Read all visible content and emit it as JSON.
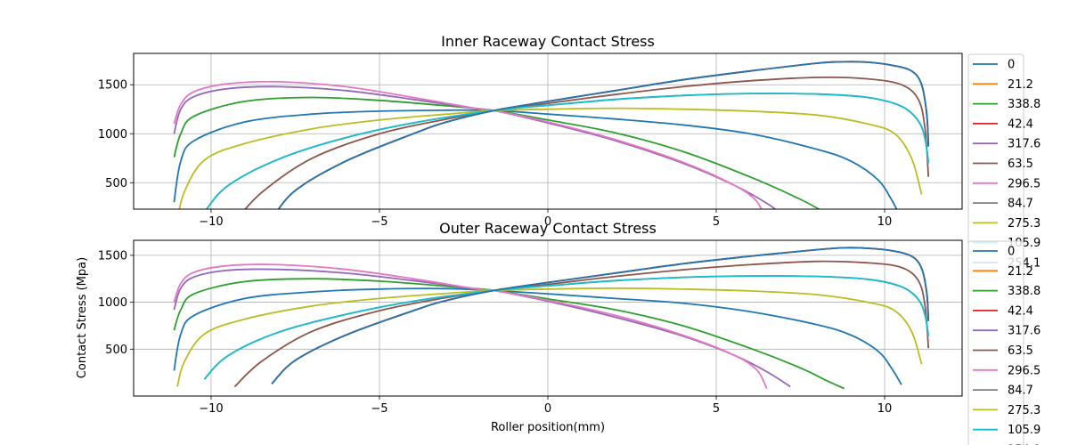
{
  "colors": {
    "palette": [
      "#1f77b4",
      "#ff7f0e",
      "#2ca02c",
      "#d62728",
      "#9467bd",
      "#8c564b",
      "#e377c2",
      "#7f7f7f",
      "#bcbd22",
      "#17becf"
    ],
    "grid": "#b0b0b0",
    "axes": "#000000"
  },
  "chart_data": [
    {
      "type": "line",
      "title": "Inner Raceway Contact Stress",
      "xlabel": "",
      "ylabel": "",
      "xlim": [
        -12.3,
        12.3
      ],
      "ylim": [
        230,
        1820
      ],
      "xticks": [
        -10,
        -5,
        0,
        5,
        10
      ],
      "xtick_labels": [
        "−10",
        "−5",
        "0",
        "5",
        "10"
      ],
      "yticks": [
        500,
        1000,
        1500
      ],
      "ytick_labels": [
        "500",
        "1000",
        "1500"
      ],
      "grid": true,
      "legend": {
        "placement": "right, outside",
        "labels": [
          "0",
          "21.2",
          "338.8",
          "42.4",
          "317.6",
          "63.5",
          "296.5",
          "84.7",
          "275.3",
          "105.9",
          "254.1"
        ]
      },
      "series": [
        {
          "name": "0",
          "color_index": 0,
          "x": [
            -11.1,
            -10.9,
            -10.5,
            -9,
            -7,
            -5,
            -3,
            -1.6,
            0,
            2,
            4,
            6,
            8,
            9,
            9.8,
            10.2,
            10.5
          ],
          "y": [
            300,
            720,
            930,
            1120,
            1200,
            1230,
            1240,
            1237,
            1200,
            1150,
            1090,
            1000,
            840,
            720,
            530,
            330,
            130
          ]
        },
        {
          "name": "21.2",
          "color_index": 1,
          "x": [
            -8.2,
            -7.5,
            -6,
            -4,
            -3,
            -1.6,
            0,
            2,
            4,
            6,
            8,
            8.8,
            9.5,
            10.2,
            10.8,
            11.1,
            11.25,
            11.3
          ],
          "y": [
            130,
            420,
            720,
            1000,
            1120,
            1237,
            1330,
            1440,
            1550,
            1640,
            1720,
            1735,
            1730,
            1700,
            1640,
            1500,
            1200,
            870
          ]
        },
        {
          "name": "338.8",
          "color_index": 2,
          "x": [
            -11.1,
            -10.9,
            -10.5,
            -9,
            -7,
            -5,
            -3,
            -1.6,
            0,
            2,
            4,
            6,
            7.5,
            8.3,
            8.8
          ],
          "y": [
            760,
            1000,
            1180,
            1330,
            1370,
            1340,
            1285,
            1237,
            1140,
            1010,
            820,
            560,
            330,
            180,
            80
          ]
        },
        {
          "name": "42.4",
          "color_index": 3,
          "x": [
            -8.2,
            -7.5,
            -6,
            -4,
            -3,
            -1.6,
            0,
            2,
            4,
            6,
            8,
            8.8,
            9.5,
            10.2,
            10.8,
            11.1,
            11.25,
            11.3
          ],
          "y": [
            130,
            420,
            720,
            1000,
            1120,
            1237,
            1330,
            1440,
            1550,
            1640,
            1720,
            1735,
            1730,
            1700,
            1640,
            1500,
            1200,
            870
          ]
        },
        {
          "name": "317.6",
          "color_index": 4,
          "x": [
            -11.1,
            -10.9,
            -10.5,
            -9.5,
            -8,
            -6,
            -4,
            -2,
            -1.6,
            0,
            2,
            4,
            5.5,
            6.5,
            7.2
          ],
          "y": [
            1000,
            1250,
            1380,
            1460,
            1480,
            1440,
            1350,
            1250,
            1237,
            1110,
            930,
            700,
            480,
            290,
            110
          ]
        },
        {
          "name": "63.5",
          "color_index": 5,
          "x": [
            -9.3,
            -8.5,
            -7,
            -5,
            -3,
            -1.6,
            0,
            2,
            4,
            6,
            8,
            9.5,
            10.5,
            11,
            11.2,
            11.3
          ],
          "y": [
            100,
            400,
            750,
            1000,
            1150,
            1237,
            1310,
            1400,
            1480,
            1540,
            1575,
            1560,
            1500,
            1350,
            1050,
            560
          ]
        },
        {
          "name": "296.5",
          "color_index": 6,
          "x": [
            -11.1,
            -10.9,
            -10.5,
            -9.5,
            -8,
            -6,
            -4,
            -2,
            -1.6,
            0,
            2,
            4,
            5.5,
            6.2,
            6.5
          ],
          "y": [
            1100,
            1300,
            1430,
            1510,
            1530,
            1480,
            1370,
            1250,
            1237,
            1120,
            940,
            710,
            480,
            310,
            80
          ]
        },
        {
          "name": "84.7",
          "color_index": 7,
          "x": [
            -10.2,
            -9.5,
            -8,
            -6,
            -4,
            -1.6,
            0,
            2,
            4,
            6,
            8,
            9.5,
            10.5,
            11,
            11.2,
            11.3
          ],
          "y": [
            200,
            470,
            740,
            960,
            1110,
            1237,
            1290,
            1350,
            1390,
            1410,
            1405,
            1370,
            1280,
            1130,
            950,
            700
          ]
        },
        {
          "name": "275.3",
          "color_index": 8,
          "x": [
            -11,
            -10.8,
            -10.2,
            -9,
            -7,
            -5,
            -3,
            -1.6,
            0,
            2,
            4,
            6,
            8,
            9.5,
            10.3,
            10.8,
            11.1
          ],
          "y": [
            120,
            400,
            730,
            900,
            1050,
            1140,
            1200,
            1237,
            1250,
            1260,
            1250,
            1230,
            1190,
            1100,
            1000,
            750,
            380
          ]
        },
        {
          "name": "105.9",
          "color_index": 9,
          "x": [
            -10.2,
            -9.5,
            -8,
            -6,
            -4,
            -1.6,
            0,
            2,
            4,
            6,
            8,
            9.5,
            10.5,
            11,
            11.2,
            11.3
          ],
          "y": [
            200,
            470,
            740,
            960,
            1110,
            1237,
            1290,
            1350,
            1390,
            1410,
            1405,
            1370,
            1280,
            1130,
            950,
            700
          ]
        },
        {
          "name": "254.1",
          "color_index": 0,
          "x": [
            -8.2,
            -7.5,
            -6,
            -4,
            -3,
            -1.6,
            0,
            2,
            4,
            6,
            8,
            8.8,
            9.5,
            10.2,
            10.8,
            11.1,
            11.25,
            11.3
          ],
          "y": [
            130,
            420,
            720,
            1000,
            1120,
            1237,
            1330,
            1440,
            1550,
            1640,
            1720,
            1735,
            1730,
            1700,
            1640,
            1500,
            1200,
            870
          ]
        }
      ]
    },
    {
      "type": "line",
      "title": "Outer Raceway Contact Stress",
      "xlabel": "Roller position(mm)",
      "ylabel": "Contact Stress (Mpa)",
      "xlim": [
        -12.3,
        12.3
      ],
      "ylim": [
        0,
        1660
      ],
      "xticks": [
        -10,
        -5,
        0,
        5,
        10
      ],
      "xtick_labels": [
        "−10",
        "−5",
        "0",
        "5",
        "10"
      ],
      "yticks": [
        500,
        1000,
        1500
      ],
      "ytick_labels": [
        "500",
        "1000",
        "1500"
      ],
      "grid": true,
      "legend": {
        "placement": "right, outside",
        "labels": [
          "0",
          "21.2",
          "338.8",
          "42.4",
          "317.6",
          "63.5",
          "296.5",
          "84.7",
          "275.3",
          "105.9",
          "254.1"
        ]
      },
      "series": [
        {
          "name": "0",
          "color_index": 0,
          "x": [
            -11.1,
            -10.9,
            -10.5,
            -9,
            -7,
            -5,
            -3,
            -1.6,
            0,
            2,
            4,
            6,
            8,
            9,
            9.8,
            10.2,
            10.5
          ],
          "y": [
            270,
            660,
            860,
            1040,
            1110,
            1140,
            1145,
            1125,
            1090,
            1040,
            990,
            900,
            760,
            650,
            480,
            300,
            120
          ]
        },
        {
          "name": "21.2",
          "color_index": 1,
          "x": [
            -8.2,
            -7.5,
            -6,
            -4,
            -3,
            -1.6,
            0,
            2,
            4,
            6,
            8,
            8.8,
            9.5,
            10.2,
            10.8,
            11.1,
            11.25,
            11.3
          ],
          "y": [
            130,
            380,
            650,
            910,
            1020,
            1125,
            1210,
            1310,
            1410,
            1490,
            1560,
            1580,
            1575,
            1550,
            1490,
            1360,
            1100,
            800
          ]
        },
        {
          "name": "338.8",
          "color_index": 2,
          "x": [
            -11.1,
            -10.9,
            -10.5,
            -9,
            -7,
            -5,
            -3,
            -1.6,
            0,
            2,
            4,
            6,
            7.5,
            8.3,
            8.8
          ],
          "y": [
            700,
            920,
            1090,
            1220,
            1250,
            1225,
            1170,
            1125,
            1035,
            920,
            750,
            510,
            300,
            160,
            80
          ]
        },
        {
          "name": "42.4",
          "color_index": 3,
          "x": [
            -8.2,
            -7.5,
            -6,
            -4,
            -3,
            -1.6,
            0,
            2,
            4,
            6,
            8,
            8.8,
            9.5,
            10.2,
            10.8,
            11.1,
            11.25,
            11.3
          ],
          "y": [
            130,
            380,
            650,
            910,
            1020,
            1125,
            1210,
            1310,
            1410,
            1490,
            1560,
            1580,
            1575,
            1550,
            1490,
            1360,
            1100,
            800
          ]
        },
        {
          "name": "317.6",
          "color_index": 4,
          "x": [
            -11.1,
            -10.9,
            -10.5,
            -9.5,
            -8,
            -6,
            -4,
            -2,
            -1.6,
            0,
            2,
            4,
            5.5,
            6.5,
            7.2
          ],
          "y": [
            920,
            1150,
            1270,
            1340,
            1350,
            1310,
            1230,
            1135,
            1125,
            1010,
            840,
            640,
            440,
            260,
            100
          ]
        },
        {
          "name": "63.5",
          "color_index": 5,
          "x": [
            -9.3,
            -8.5,
            -7,
            -5,
            -3,
            -1.6,
            0,
            2,
            4,
            6,
            8,
            9.5,
            10.5,
            11,
            11.2,
            11.3
          ],
          "y": [
            100,
            370,
            690,
            910,
            1050,
            1125,
            1190,
            1275,
            1345,
            1400,
            1435,
            1420,
            1370,
            1230,
            960,
            510
          ]
        },
        {
          "name": "296.5",
          "color_index": 6,
          "x": [
            -11.1,
            -10.9,
            -10.5,
            -9.5,
            -8,
            -6,
            -4,
            -2,
            -1.6,
            0,
            2,
            4,
            5.5,
            6.2,
            6.5
          ],
          "y": [
            1000,
            1200,
            1320,
            1390,
            1400,
            1350,
            1250,
            1135,
            1125,
            1020,
            860,
            650,
            440,
            280,
            80
          ]
        },
        {
          "name": "84.7",
          "color_index": 7,
          "x": [
            -10.2,
            -9.5,
            -8,
            -6,
            -4,
            -1.6,
            0,
            2,
            4,
            6,
            8,
            9.5,
            10.5,
            11,
            11.2,
            11.3
          ],
          "y": [
            180,
            430,
            680,
            870,
            1010,
            1125,
            1175,
            1230,
            1265,
            1280,
            1275,
            1245,
            1165,
            1030,
            860,
            640
          ]
        },
        {
          "name": "275.3",
          "color_index": 8,
          "x": [
            -11,
            -10.8,
            -10.2,
            -9,
            -7,
            -5,
            -3,
            -1.6,
            0,
            2,
            4,
            6,
            8,
            9.5,
            10.3,
            10.8,
            11.1
          ],
          "y": [
            100,
            360,
            660,
            820,
            960,
            1040,
            1095,
            1125,
            1140,
            1150,
            1140,
            1120,
            1080,
            1000,
            910,
            690,
            340
          ]
        },
        {
          "name": "105.9",
          "color_index": 9,
          "x": [
            -10.2,
            -9.5,
            -8,
            -6,
            -4,
            -1.6,
            0,
            2,
            4,
            6,
            8,
            9.5,
            10.5,
            11,
            11.2,
            11.3
          ],
          "y": [
            180,
            430,
            680,
            870,
            1010,
            1125,
            1175,
            1230,
            1265,
            1280,
            1275,
            1245,
            1165,
            1030,
            860,
            640
          ]
        },
        {
          "name": "254.1",
          "color_index": 0,
          "x": [
            -8.2,
            -7.5,
            -6,
            -4,
            -3,
            -1.6,
            0,
            2,
            4,
            6,
            8,
            8.8,
            9.5,
            10.2,
            10.8,
            11.1,
            11.25,
            11.3
          ],
          "y": [
            130,
            380,
            650,
            910,
            1020,
            1125,
            1210,
            1310,
            1410,
            1490,
            1560,
            1580,
            1575,
            1550,
            1490,
            1360,
            1100,
            800
          ]
        }
      ]
    }
  ]
}
